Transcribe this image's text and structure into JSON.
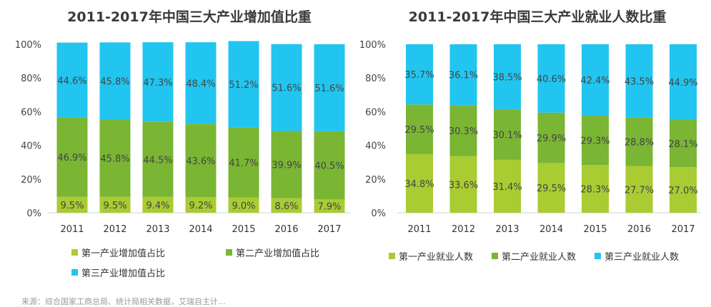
{
  "chart_data": [
    {
      "type": "bar",
      "stacked": true,
      "title": "2011-2017年中国三大产业增加值比重",
      "categories": [
        "2011",
        "2012",
        "2013",
        "2014",
        "2015",
        "2016",
        "2017"
      ],
      "ylim": [
        0,
        100
      ],
      "yticks": [
        "0%",
        "20%",
        "40%",
        "60%",
        "80%",
        "100%"
      ],
      "series": [
        {
          "name": "第一产业增加值占比",
          "color": "#a8cc32",
          "values": [
            9.5,
            9.5,
            9.4,
            9.2,
            9.0,
            8.6,
            7.9
          ],
          "labels": [
            "9.5%",
            "9.5%",
            "9.4%",
            "9.2%",
            "9.0%",
            "8.6%",
            "7.9%"
          ]
        },
        {
          "name": "第二产业增加值占比",
          "color": "#7ab534",
          "values": [
            46.9,
            45.8,
            44.5,
            43.6,
            41.7,
            39.9,
            40.5
          ],
          "labels": [
            "46.9%",
            "45.8%",
            "44.5%",
            "43.6%",
            "41.7%",
            "39.9%",
            "40.5%"
          ]
        },
        {
          "name": "第三产业增加值占比",
          "color": "#22c5ef",
          "values": [
            44.6,
            45.8,
            47.3,
            48.4,
            51.2,
            51.6,
            51.6
          ],
          "labels": [
            "44.6%",
            "45.8%",
            "47.3%",
            "48.4%",
            "51.2%",
            "51.6%",
            "51.6%"
          ]
        }
      ],
      "legend": "bottom-two-rows"
    },
    {
      "type": "bar",
      "stacked": true,
      "title": "2011-2017年中国三大产业就业人数比重",
      "categories": [
        "2011",
        "2012",
        "2013",
        "2014",
        "2015",
        "2016",
        "2017"
      ],
      "ylim": [
        0,
        100
      ],
      "yticks": [
        "0%",
        "20%",
        "40%",
        "60%",
        "80%",
        "100%"
      ],
      "series": [
        {
          "name": "第一产业就业人数",
          "color": "#a8cc32",
          "values": [
            34.8,
            33.6,
            31.4,
            29.5,
            28.3,
            27.7,
            27.0
          ],
          "labels": [
            "34.8%",
            "33.6%",
            "31.4%",
            "29.5%",
            "28.3%",
            "27.7%",
            "27.0%"
          ]
        },
        {
          "name": "第二产业就业人数",
          "color": "#7ab534",
          "values": [
            29.5,
            30.3,
            30.1,
            29.9,
            29.3,
            28.8,
            28.1
          ],
          "labels": [
            "29.5%",
            "30.3%",
            "30.1%",
            "29.9%",
            "29.3%",
            "28.8%",
            "28.1%"
          ]
        },
        {
          "name": "第三产业就业人数",
          "color": "#22c5ef",
          "values": [
            35.7,
            36.1,
            38.5,
            40.6,
            42.4,
            43.5,
            44.9
          ],
          "labels": [
            "35.7%",
            "36.1%",
            "38.5%",
            "40.6%",
            "42.4%",
            "43.5%",
            "44.9%"
          ]
        }
      ],
      "legend": "bottom-one-row"
    }
  ],
  "footer": {
    "source": "来源：综合国家工商总局、统计局相关数据，艾瑞自主计…"
  }
}
